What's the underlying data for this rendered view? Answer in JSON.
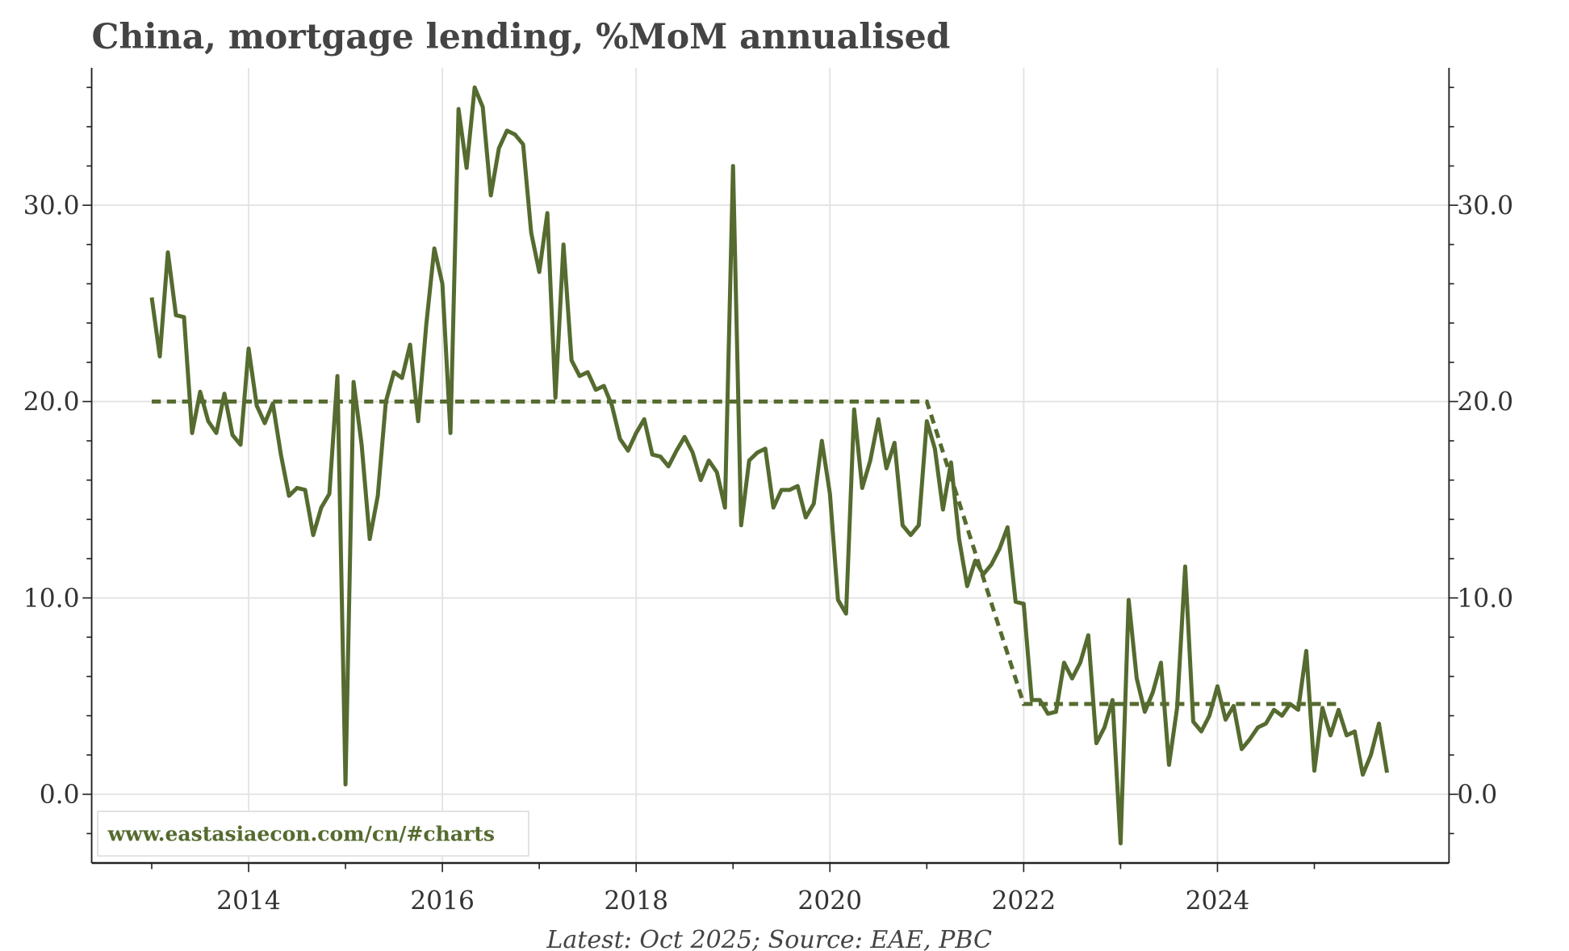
{
  "chart_data": {
    "type": "line",
    "title": "China, mortgage lending, %MoM annualised",
    "source_note": "Latest: Oct 2025; Source: EAE, PBC",
    "watermark": "www.eastasiaecon.com/cn/#charts",
    "xlabel": "",
    "ylabel": "",
    "xlim": [
      2012.38,
      2026.39
    ],
    "ylim": [
      -3.5,
      37.0
    ],
    "x_ticks": [
      "2014",
      "2016",
      "2018",
      "2020",
      "2022",
      "2024"
    ],
    "y_ticks": [
      "0.0",
      "10.0",
      "20.0",
      "30.0"
    ],
    "grid": true,
    "colors": {
      "series": "#556b2f",
      "title": "#444444",
      "grid": "#e3e3e3"
    },
    "start": "2013-01",
    "frequency": "monthly",
    "series": [
      {
        "name": "Mortgage lending %MoM annualised",
        "style": "solid",
        "values": [
          25.3,
          22.3,
          27.6,
          24.4,
          24.3,
          18.4,
          20.5,
          19.0,
          18.4,
          20.4,
          18.3,
          17.8,
          22.7,
          19.8,
          18.9,
          19.9,
          17.3,
          15.2,
          15.6,
          15.5,
          13.2,
          14.6,
          15.3,
          21.3,
          0.5,
          21.0,
          17.8,
          13.0,
          15.2,
          20.0,
          21.5,
          21.2,
          22.9,
          19.0,
          23.9,
          27.8,
          26.0,
          18.4,
          34.9,
          31.9,
          36.0,
          35.0,
          30.5,
          32.9,
          33.8,
          33.6,
          33.1,
          28.6,
          26.6,
          29.6,
          20.2,
          28.0,
          22.1,
          21.3,
          21.5,
          20.6,
          20.8,
          19.8,
          18.1,
          17.5,
          18.4,
          19.1,
          17.3,
          17.2,
          16.7,
          17.5,
          18.2,
          17.4,
          16.0,
          17.0,
          16.4,
          14.6,
          32.0,
          13.7,
          17.0,
          17.4,
          17.6,
          14.6,
          15.5,
          15.5,
          15.7,
          14.1,
          14.8,
          18.0,
          15.3,
          9.9,
          9.2,
          19.6,
          15.6,
          17.0,
          19.1,
          16.6,
          17.9,
          13.7,
          13.2,
          13.7,
          19.0,
          17.6,
          14.5,
          16.9,
          13.0,
          10.6,
          11.9,
          11.2,
          11.7,
          12.5,
          13.6,
          9.8,
          9.7,
          4.8,
          4.8,
          4.1,
          4.2,
          6.7,
          5.9,
          6.7,
          8.1,
          2.6,
          3.4,
          4.8,
          -2.5,
          9.9,
          5.9,
          4.2,
          5.2,
          6.7,
          1.5,
          4.4,
          11.6,
          3.7,
          3.2,
          4.0,
          5.5,
          3.8,
          4.5,
          2.3,
          2.8,
          3.4,
          3.6,
          4.3,
          4.0,
          4.6,
          4.3,
          7.3,
          1.2,
          4.4,
          3.0,
          4.3,
          3.0,
          3.2,
          1.0,
          2.0,
          3.6,
          1.1
        ]
      },
      {
        "name": "Trend",
        "style": "dashed",
        "points": [
          [
            2013.0,
            20.0
          ],
          [
            2021.0,
            20.0
          ],
          [
            2022.0,
            4.6
          ],
          [
            2025.25,
            4.6
          ]
        ]
      }
    ]
  }
}
